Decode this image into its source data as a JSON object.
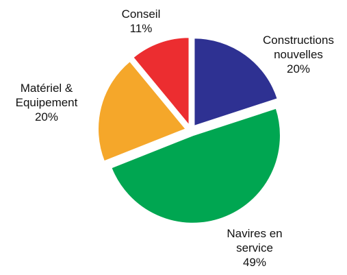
{
  "chart_data": {
    "type": "pie",
    "categories": [
      "Constructions\nnouvelles",
      "Navires en\nservice",
      "Matériel &\nEquipement",
      "Conseil"
    ],
    "values": [
      20,
      49,
      20,
      11
    ],
    "value_labels": [
      "20%",
      "49%",
      "20%",
      "11%"
    ],
    "colors": [
      "#2e3192",
      "#00a651",
      "#f5a72a",
      "#ec2d30"
    ]
  }
}
